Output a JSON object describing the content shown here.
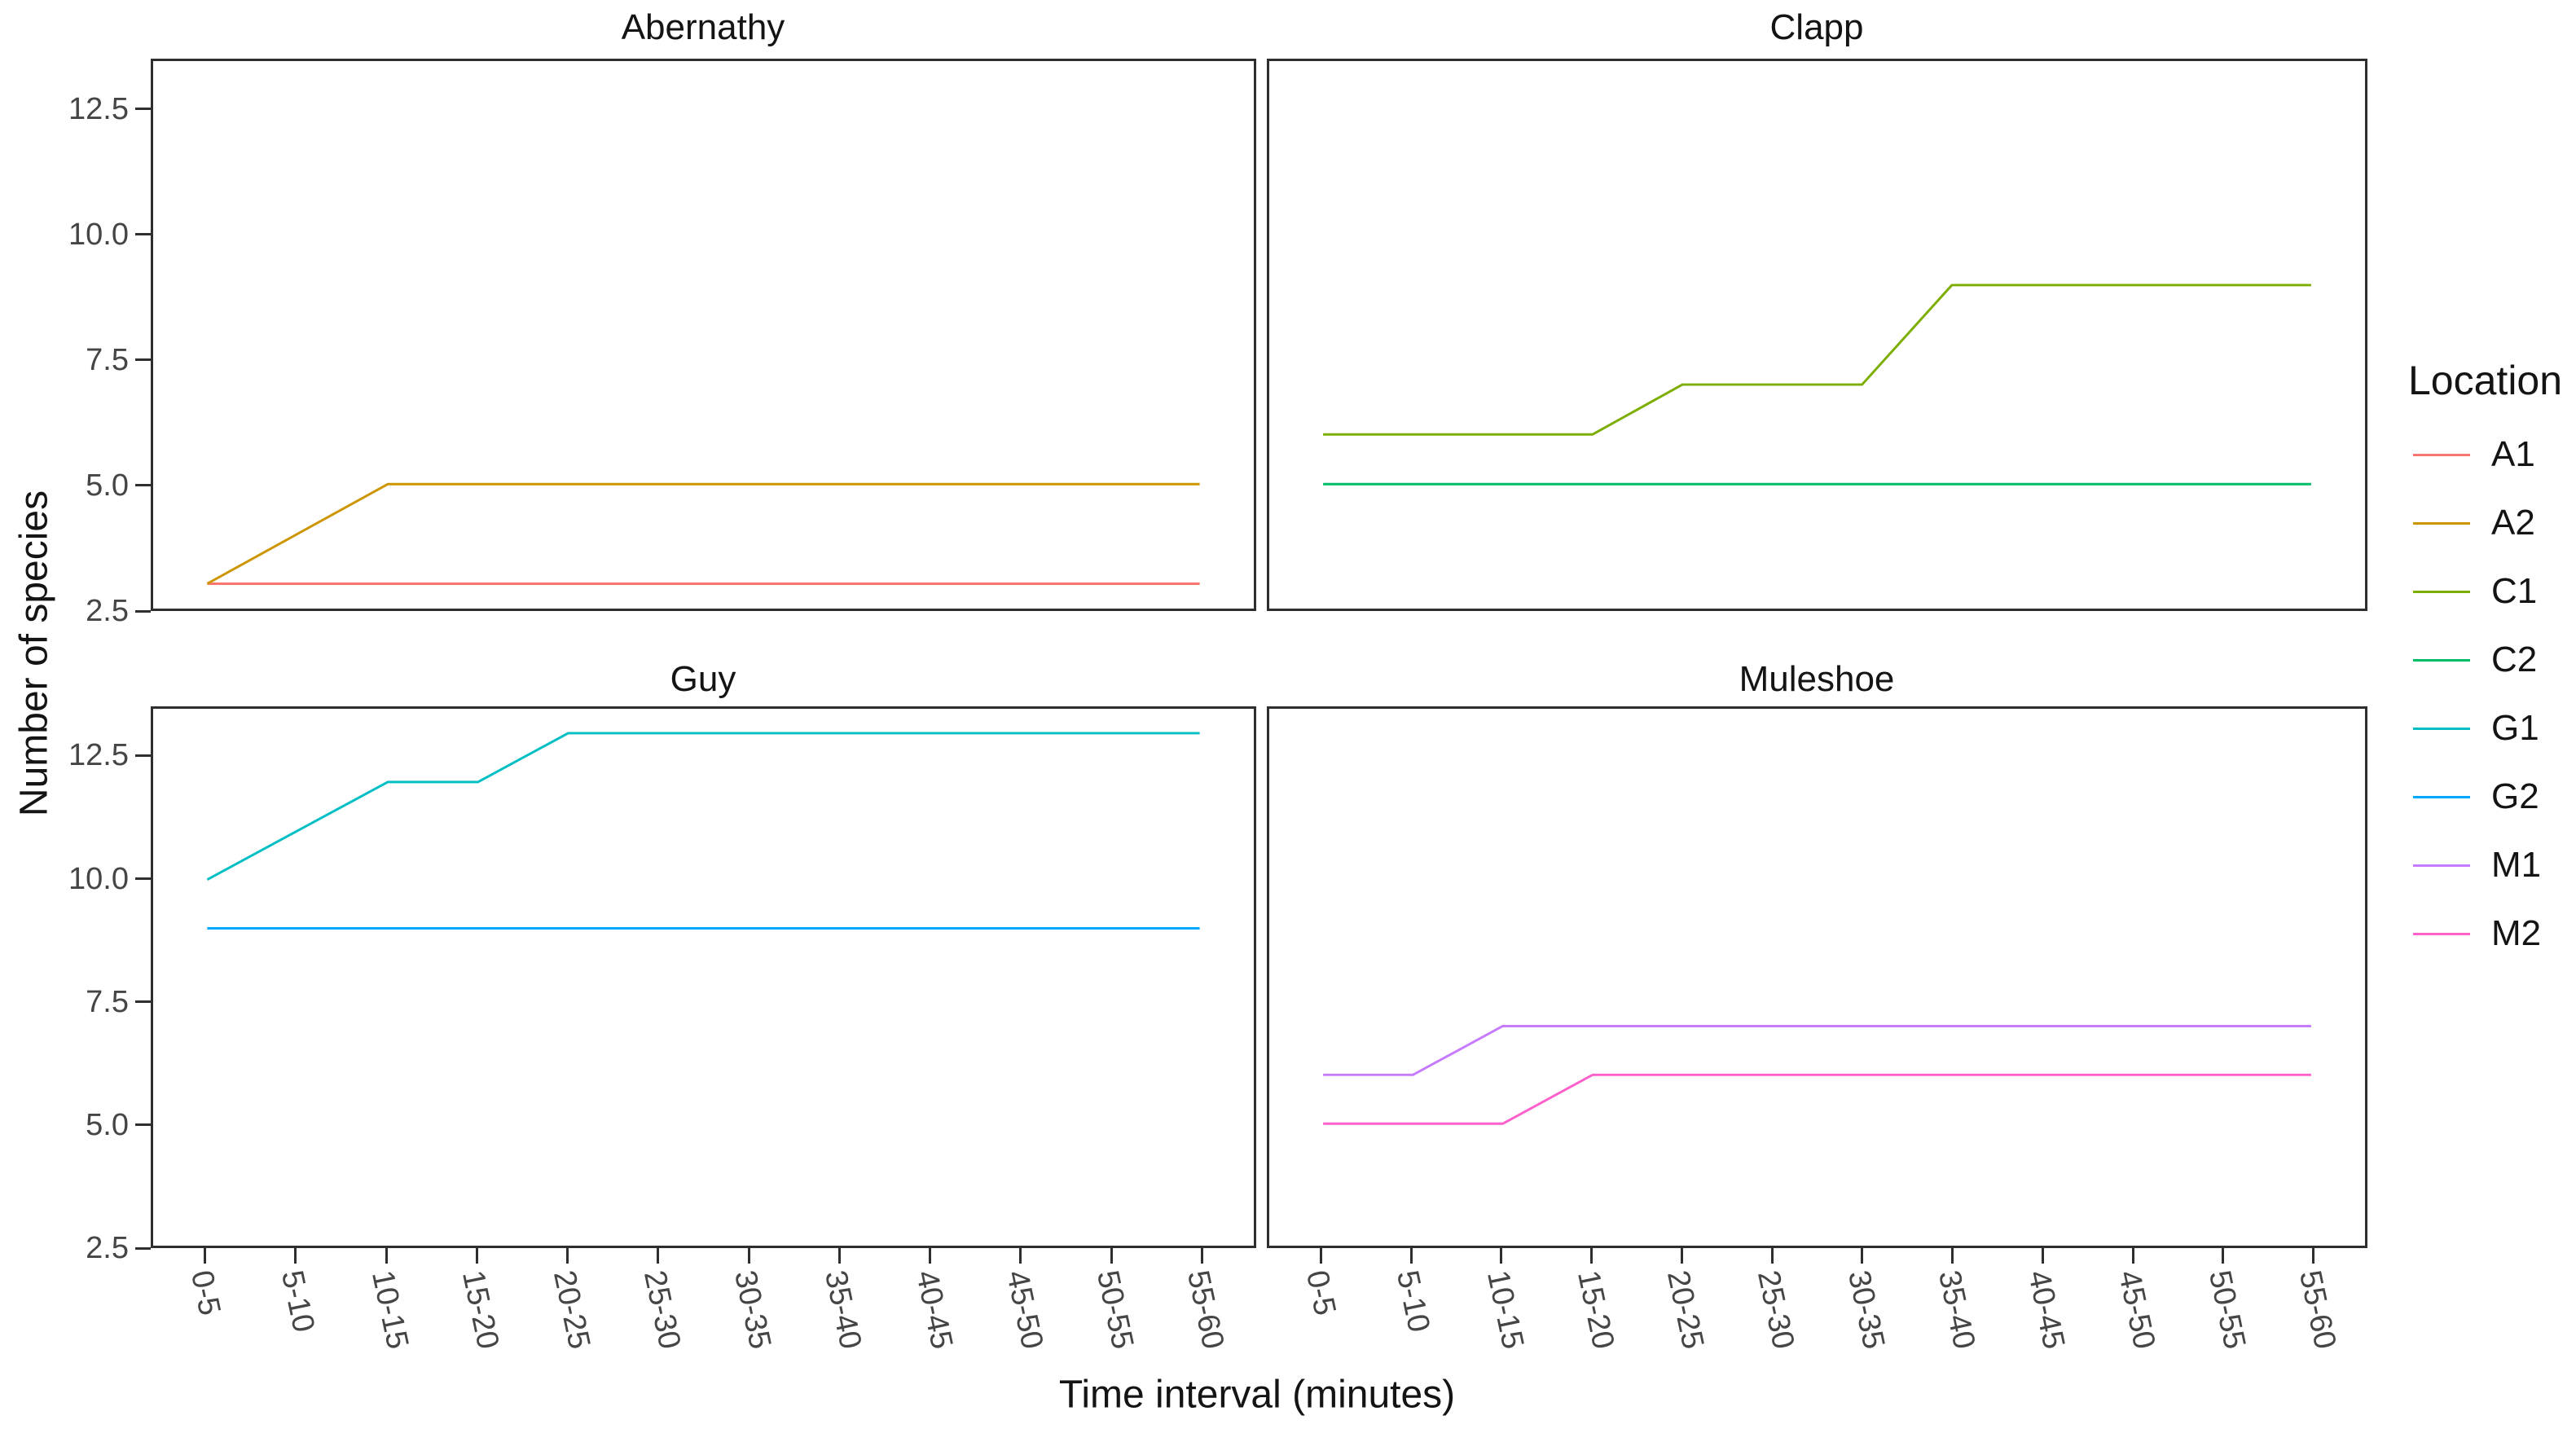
{
  "chart_data": {
    "type": "line",
    "title": "",
    "xlabel": "Time interval (minutes)",
    "ylabel": "Number of species",
    "categories": [
      "0-5",
      "5-10",
      "10-15",
      "15-20",
      "20-25",
      "25-30",
      "30-35",
      "35-40",
      "40-45",
      "45-50",
      "50-55",
      "55-60"
    ],
    "ylim": [
      2.5,
      13.5
    ],
    "y_ticks": [
      {
        "value": 12.5,
        "label": "12.5"
      },
      {
        "value": 10.0,
        "label": "10.0"
      },
      {
        "value": 7.5,
        "label": "7.5"
      },
      {
        "value": 5.0,
        "label": "5.0"
      },
      {
        "value": 2.5,
        "label": "2.5"
      }
    ],
    "grid": false,
    "panel_border": true,
    "legend_position": "right",
    "x_tick_label_angle_deg": 78,
    "facets": [
      {
        "title": "Abernathy",
        "series": [
          {
            "name": "A1",
            "color": "#F8766D",
            "values": [
              3,
              3,
              3,
              3,
              3,
              3,
              3,
              3,
              3,
              3,
              3,
              3
            ]
          },
          {
            "name": "A2",
            "color": "#CD9600",
            "values": [
              3,
              4,
              5,
              5,
              5,
              5,
              5,
              5,
              5,
              5,
              5,
              5
            ]
          }
        ]
      },
      {
        "title": "Clapp",
        "series": [
          {
            "name": "C1",
            "color": "#7CAE00",
            "values": [
              6,
              6,
              6,
              6,
              7,
              7,
              7,
              9,
              9,
              9,
              9,
              9
            ]
          },
          {
            "name": "C2",
            "color": "#00BE67",
            "values": [
              5,
              5,
              5,
              5,
              5,
              5,
              5,
              5,
              5,
              5,
              5,
              5
            ]
          }
        ]
      },
      {
        "title": "Guy",
        "series": [
          {
            "name": "G1",
            "color": "#00BFC4",
            "values": [
              10,
              11,
              12,
              12,
              13,
              13,
              13,
              13,
              13,
              13,
              13,
              13
            ]
          },
          {
            "name": "G2",
            "color": "#00A9FF",
            "values": [
              9,
              9,
              9,
              9,
              9,
              9,
              9,
              9,
              9,
              9,
              9,
              9
            ]
          }
        ]
      },
      {
        "title": "Muleshoe",
        "series": [
          {
            "name": "M1",
            "color": "#C77CFF",
            "values": [
              6,
              6,
              7,
              7,
              7,
              7,
              7,
              7,
              7,
              7,
              7,
              7
            ]
          },
          {
            "name": "M2",
            "color": "#FF61CC",
            "values": [
              5,
              5,
              5,
              6,
              6,
              6,
              6,
              6,
              6,
              6,
              6,
              6
            ]
          }
        ]
      }
    ],
    "legend": {
      "title": "Location",
      "items": [
        {
          "label": "A1",
          "color": "#F8766D"
        },
        {
          "label": "A2",
          "color": "#CD9600"
        },
        {
          "label": "C1",
          "color": "#7CAE00"
        },
        {
          "label": "C2",
          "color": "#00BE67"
        },
        {
          "label": "G1",
          "color": "#00BFC4"
        },
        {
          "label": "G2",
          "color": "#00A9FF"
        },
        {
          "label": "M1",
          "color": "#C77CFF"
        },
        {
          "label": "M2",
          "color": "#FF61CC"
        }
      ]
    }
  }
}
